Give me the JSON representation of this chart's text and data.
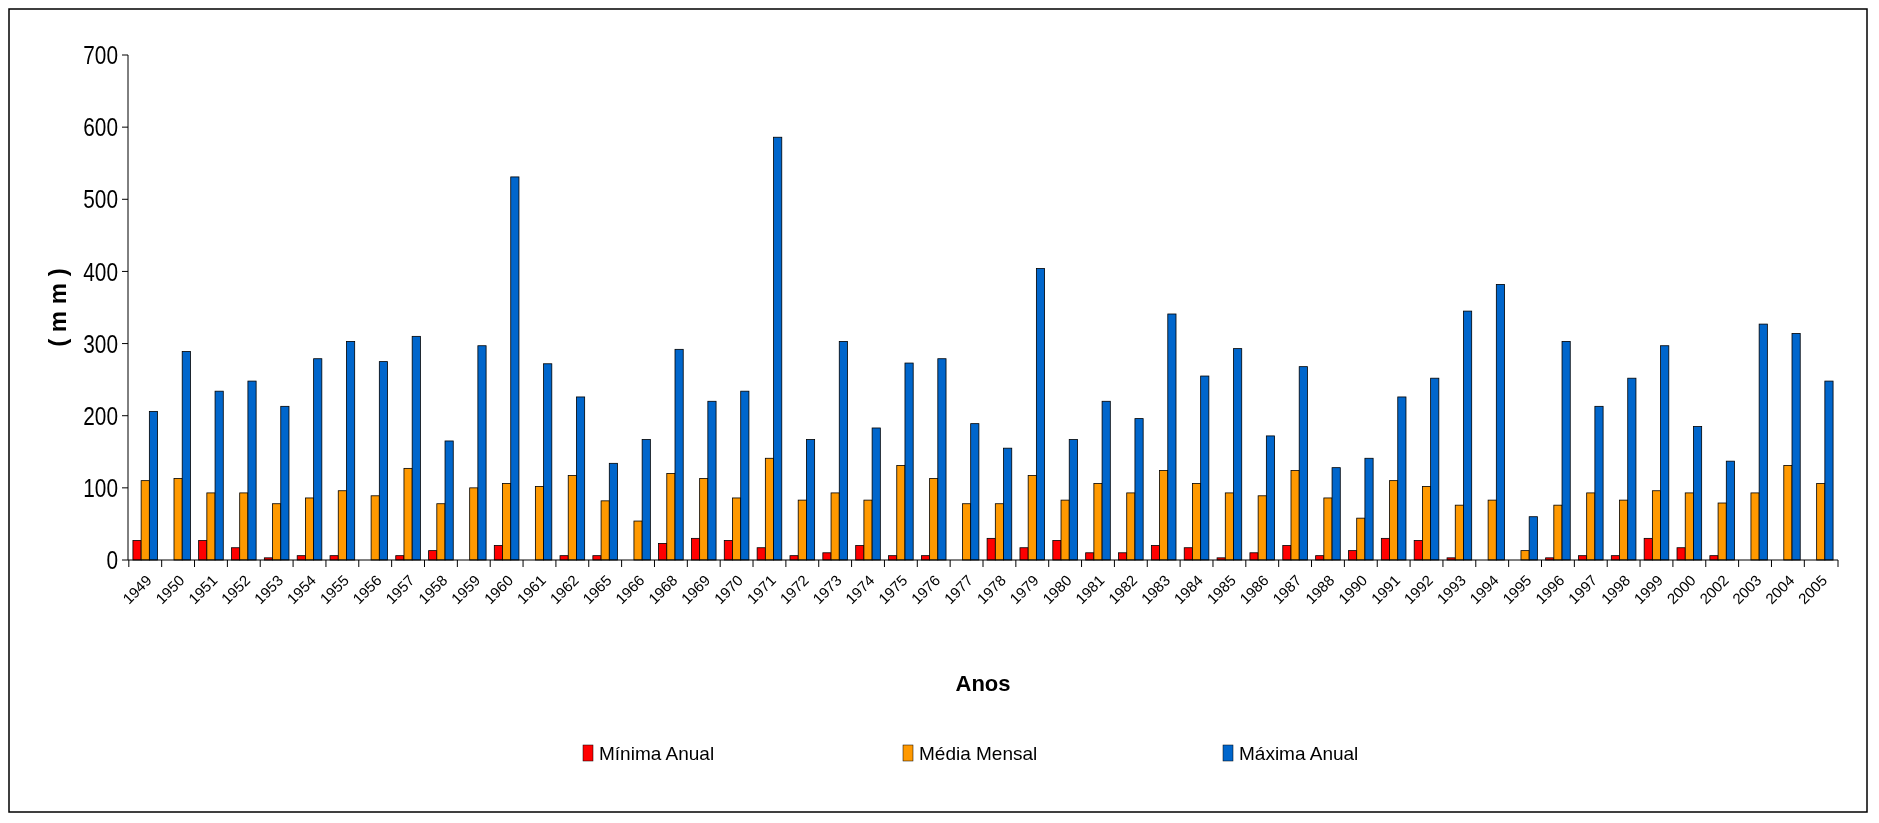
{
  "chart_data": {
    "type": "bar",
    "xlabel": "Anos",
    "ylabel": "( m m )",
    "categories": [
      "1949",
      "1950",
      "1951",
      "1952",
      "1953",
      "1954",
      "1955",
      "1956",
      "1957",
      "1958",
      "1959",
      "1960",
      "1961",
      "1962",
      "1965",
      "1966",
      "1968",
      "1969",
      "1970",
      "1971",
      "1972",
      "1973",
      "1974",
      "1975",
      "1976",
      "1977",
      "1978",
      "1979",
      "1980",
      "1981",
      "1982",
      "1983",
      "1984",
      "1985",
      "1986",
      "1987",
      "1988",
      "1990",
      "1991",
      "1992",
      "1993",
      "1994",
      "1995",
      "1996",
      "1997",
      "1998",
      "1999",
      "2000",
      "2002",
      "2003",
      "2004",
      "2005"
    ],
    "series": [
      {
        "name": "Mínima Anual",
        "color": "#ff0000",
        "values": [
          27,
          0,
          27,
          17,
          3,
          6,
          6,
          0,
          6,
          13,
          0,
          20,
          0,
          6,
          6,
          0,
          23,
          30,
          27,
          17,
          6,
          10,
          20,
          6,
          6,
          0,
          30,
          17,
          27,
          10,
          10,
          20,
          17,
          3,
          10,
          20,
          6,
          13,
          30,
          27,
          3,
          0,
          0,
          3,
          6,
          6,
          30,
          17,
          6,
          0,
          0,
          0
        ]
      },
      {
        "name": "Média Mensal",
        "color": "#ff9900",
        "values": [
          110,
          113,
          93,
          93,
          78,
          86,
          96,
          89,
          127,
          78,
          100,
          106,
          102,
          117,
          82,
          54,
          120,
          113,
          86,
          141,
          83,
          93,
          83,
          131,
          113,
          78,
          78,
          117,
          83,
          106,
          93,
          124,
          106,
          93,
          89,
          124,
          86,
          58,
          110,
          102,
          76,
          83,
          13,
          76,
          93,
          83,
          96,
          93,
          79,
          93,
          131,
          106
        ]
      },
      {
        "name": "Máxima Anual",
        "color": "#0066cc",
        "values": [
          206,
          289,
          234,
          248,
          213,
          279,
          303,
          275,
          310,
          165,
          297,
          531,
          272,
          226,
          134,
          167,
          292,
          220,
          234,
          586,
          167,
          303,
          183,
          273,
          279,
          189,
          155,
          404,
          167,
          220,
          196,
          341,
          255,
          293,
          172,
          268,
          128,
          141,
          226,
          252,
          345,
          382,
          60,
          303,
          213,
          252,
          297,
          185,
          137,
          327,
          314,
          248
        ]
      }
    ],
    "ylim": [
      0,
      700
    ],
    "yticks": [
      0,
      100,
      200,
      300,
      400,
      500,
      600,
      700
    ],
    "grid": false,
    "legend": "bottom"
  }
}
